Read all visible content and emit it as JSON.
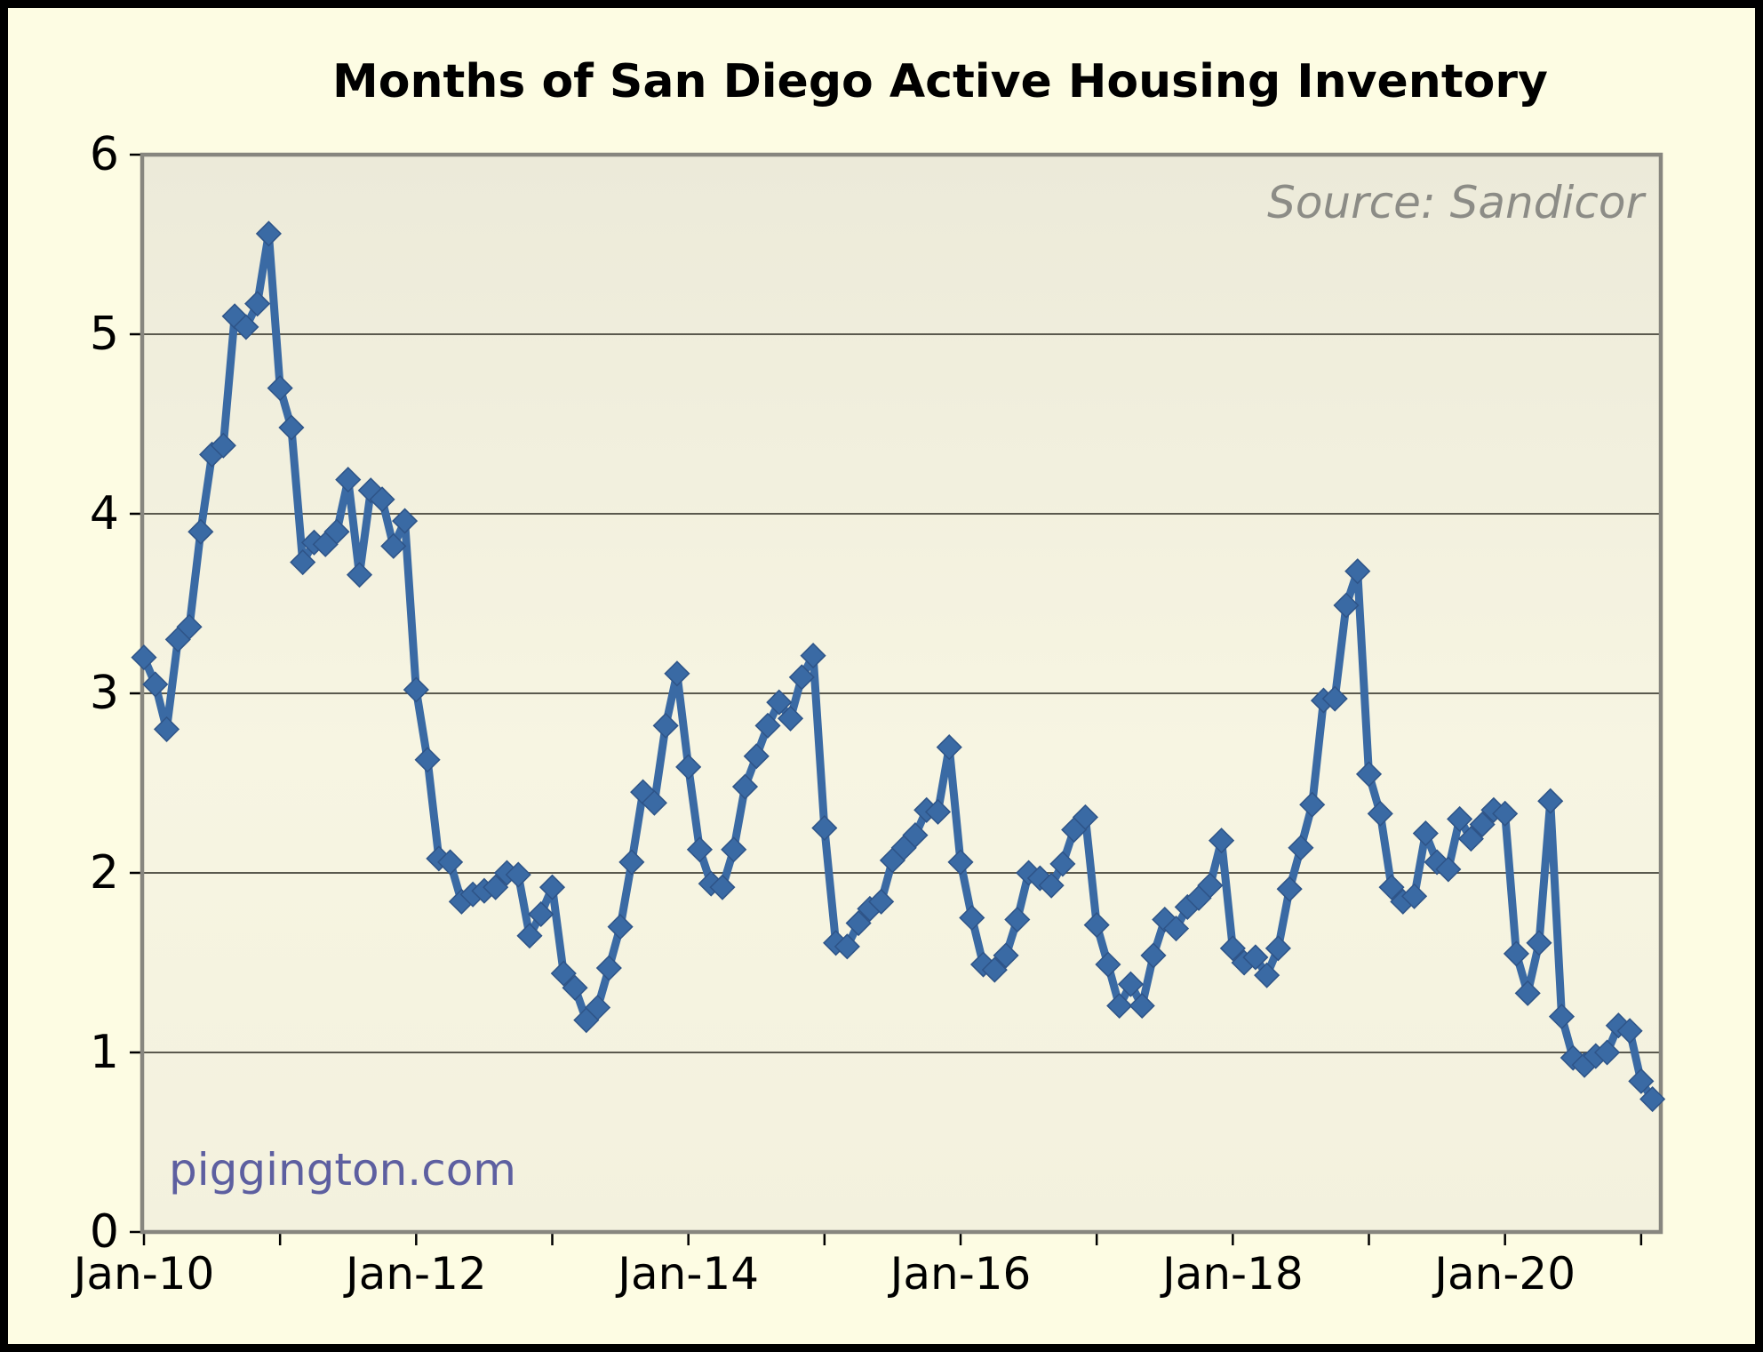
{
  "title": "Months of San Diego Active Housing Inventory",
  "source_note": "Source: Sandicor",
  "watermark": "piggington.com",
  "colors": {
    "outer_background": "#FDFCE3",
    "frame_border": "#000000",
    "plot_bg_top": "#ECEAD9",
    "plot_bg_mid": "#F7F5E2",
    "plot_bg_bottom": "#F3F1DE",
    "plot_border": "#87867F",
    "gridline": "#5A594E",
    "tick": "#000000",
    "line": "#3A6AA4",
    "marker_stroke": "#2E5488",
    "title_text": "#000000",
    "source_text": "#8C8C86",
    "watermark_text": "#5D5FA0"
  },
  "chart_data": {
    "type": "line",
    "series_name": "Months of active housing inventory (San Diego)",
    "x_start_label": "Jan-10",
    "x_end_label": "Feb-21",
    "x_frequency": "monthly",
    "n_points": 134,
    "values": [
      3.2,
      3.05,
      2.8,
      3.3,
      3.37,
      3.9,
      4.33,
      4.38,
      5.1,
      5.04,
      5.17,
      5.56,
      4.7,
      4.48,
      3.73,
      3.84,
      3.83,
      3.9,
      4.19,
      3.66,
      4.13,
      4.08,
      3.82,
      3.96,
      3.02,
      2.63,
      2.08,
      2.06,
      1.84,
      1.88,
      1.9,
      1.92,
      2.0,
      1.99,
      1.65,
      1.77,
      1.92,
      1.44,
      1.36,
      1.18,
      1.25,
      1.47,
      1.7,
      2.06,
      2.45,
      2.39,
      2.82,
      3.11,
      2.59,
      2.13,
      1.94,
      1.92,
      2.13,
      2.48,
      2.65,
      2.82,
      2.95,
      2.86,
      3.09,
      3.21,
      2.25,
      1.61,
      1.59,
      1.72,
      1.8,
      1.84,
      2.07,
      2.14,
      2.21,
      2.35,
      2.34,
      2.7,
      2.06,
      1.75,
      1.49,
      1.46,
      1.54,
      1.74,
      2.0,
      1.97,
      1.93,
      2.05,
      2.24,
      2.31,
      1.71,
      1.49,
      1.26,
      1.38,
      1.26,
      1.54,
      1.74,
      1.69,
      1.81,
      1.86,
      1.93,
      2.18,
      1.58,
      1.5,
      1.53,
      1.43,
      1.58,
      1.91,
      2.14,
      2.38,
      2.96,
      2.97,
      3.49,
      3.68,
      2.55,
      2.33,
      1.92,
      1.84,
      1.87,
      2.22,
      2.06,
      2.02,
      2.3,
      2.19,
      2.27,
      2.35,
      2.33,
      1.55,
      1.33,
      1.61,
      2.4,
      1.2,
      0.97,
      0.93,
      0.98,
      1.0,
      1.15,
      1.12,
      0.84,
      0.74
    ],
    "x_tick_labels": [
      "Jan-10",
      "Jan-12",
      "Jan-14",
      "Jan-16",
      "Jan-18",
      "Jan-20"
    ],
    "x_tick_label_every_months": 24,
    "x_minor_tick_every_months": 12,
    "y_ticks": [
      "0",
      "1",
      "2",
      "3",
      "4",
      "5",
      "6"
    ],
    "ylim": [
      0,
      6
    ],
    "grid": "horizontal lines at integers",
    "legend": "none",
    "marker": "diamond"
  }
}
